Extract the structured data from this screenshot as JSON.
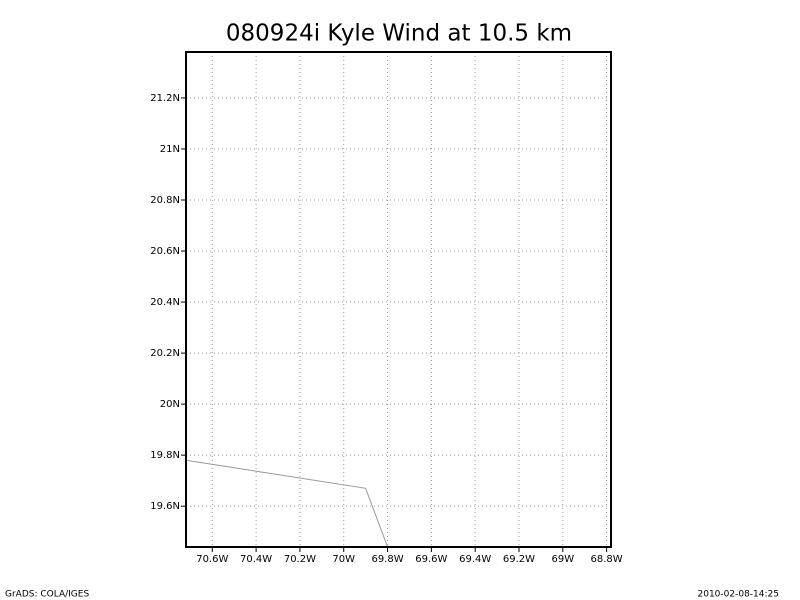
{
  "chart_data": {
    "type": "line",
    "title": "080924i Kyle Wind at 10.5 km",
    "x": [
      -70.72,
      -69.9,
      -69.8
    ],
    "series": [
      {
        "color": "#999999",
        "values": [
          19.78,
          19.67,
          19.44
        ]
      }
    ],
    "xlim": [
      -70.72,
      -68.78
    ],
    "ylim": [
      19.44,
      21.38
    ],
    "xticks": [
      {
        "value": -70.6,
        "label": "70.6W"
      },
      {
        "value": -70.4,
        "label": "70.4W"
      },
      {
        "value": -70.2,
        "label": "70.2W"
      },
      {
        "value": -70.0,
        "label": "70W"
      },
      {
        "value": -69.8,
        "label": "69.8W"
      },
      {
        "value": -69.6,
        "label": "69.6W"
      },
      {
        "value": -69.4,
        "label": "69.4W"
      },
      {
        "value": -69.2,
        "label": "69.2W"
      },
      {
        "value": -69.0,
        "label": "69W"
      },
      {
        "value": -68.8,
        "label": "68.8W"
      }
    ],
    "yticks": [
      {
        "value": 19.6,
        "label": "19.6N"
      },
      {
        "value": 19.8,
        "label": "19.8N"
      },
      {
        "value": 20.0,
        "label": "20N"
      },
      {
        "value": 20.2,
        "label": "20.2N"
      },
      {
        "value": 20.4,
        "label": "20.4N"
      },
      {
        "value": 20.6,
        "label": "20.6N"
      },
      {
        "value": 20.8,
        "label": "20.8N"
      },
      {
        "value": 21.0,
        "label": "21N"
      },
      {
        "value": 21.2,
        "label": "21.2N"
      }
    ],
    "grid": true,
    "footer_left": "GrADS: COLA/IGES",
    "footer_right": "2010-02-08-14:25"
  }
}
